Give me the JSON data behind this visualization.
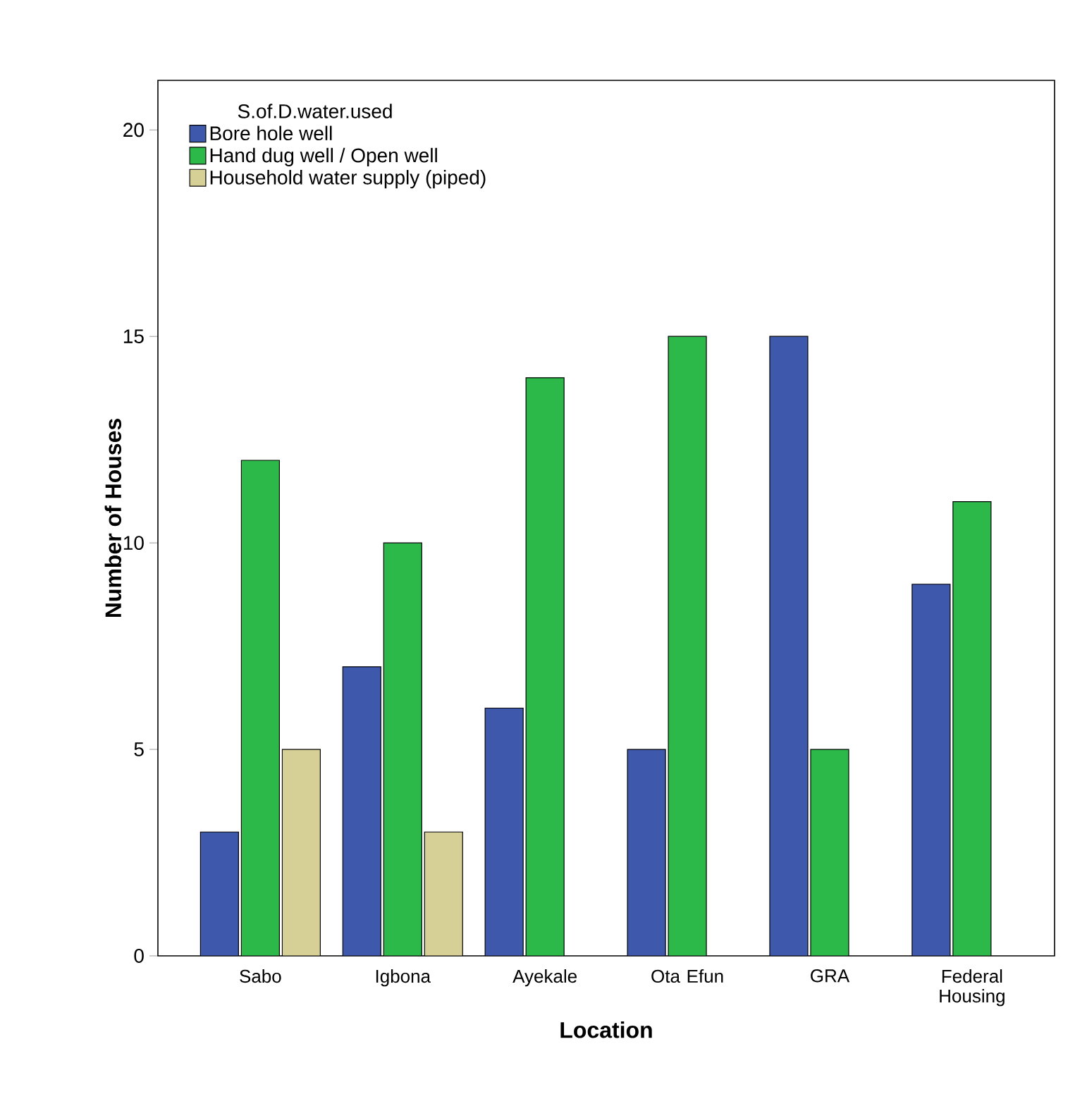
{
  "chart_data": {
    "type": "bar",
    "xlabel": "Location",
    "ylabel": "Number of Houses",
    "legend_title": "S.of.D.water.used",
    "categories": [
      "Sabo",
      "Igbona",
      "Ayekale",
      "Ota Efun",
      "GRA",
      "Federal Housing"
    ],
    "series": [
      {
        "name": "Bore hole well",
        "color": "#3e58ac",
        "values": [
          3,
          7,
          6,
          5,
          15,
          9
        ]
      },
      {
        "name": "Hand dug well / Open well",
        "color": "#2db84a",
        "values": [
          12,
          10,
          14,
          15,
          5,
          11
        ]
      },
      {
        "name": "Household water supply (piped)",
        "color": "#d6cf96",
        "values": [
          5,
          3,
          null,
          null,
          null,
          null
        ]
      }
    ],
    "ylim": [
      0,
      21.2
    ],
    "yticks": [
      0,
      5,
      10,
      15,
      20
    ],
    "grid": false,
    "legend": "top left"
  }
}
